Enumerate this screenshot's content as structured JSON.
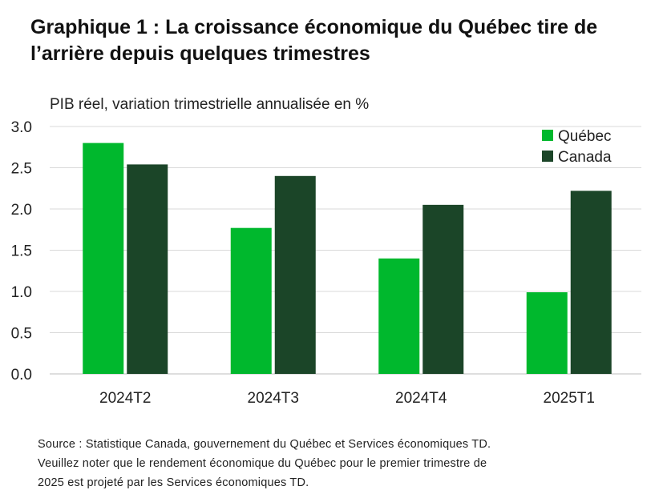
{
  "chart_data": {
    "type": "bar",
    "title": "Graphique 1 : La croissance économique du Québec tire de l’arrière depuis quelques trimestres",
    "ylabel": "PIB réel, variation trimestrielle annualisée en %",
    "xlabel": "",
    "categories": [
      "2024T2",
      "2024T3",
      "2024T4",
      "2025T1"
    ],
    "series": [
      {
        "name": "Québec",
        "color": "#00b82d",
        "values": [
          2.8,
          1.77,
          1.4,
          0.99
        ]
      },
      {
        "name": "Canada",
        "color": "#1b4528",
        "values": [
          2.54,
          2.4,
          2.05,
          2.22
        ]
      }
    ],
    "ylim": [
      0,
      3.0
    ],
    "yticks": [
      "0.0",
      "0.5",
      "1.0",
      "1.5",
      "2.0",
      "2.5",
      "3.0"
    ],
    "grid": true,
    "legend_position": "top-right"
  },
  "source": {
    "line1": "Source : Statistique Canada, gouvernement du Québec et Services économiques TD.",
    "line2": "Veuillez noter que le rendement économique du Québec pour le premier trimestre de",
    "line3": "2025 est projeté par les Services économiques TD."
  }
}
